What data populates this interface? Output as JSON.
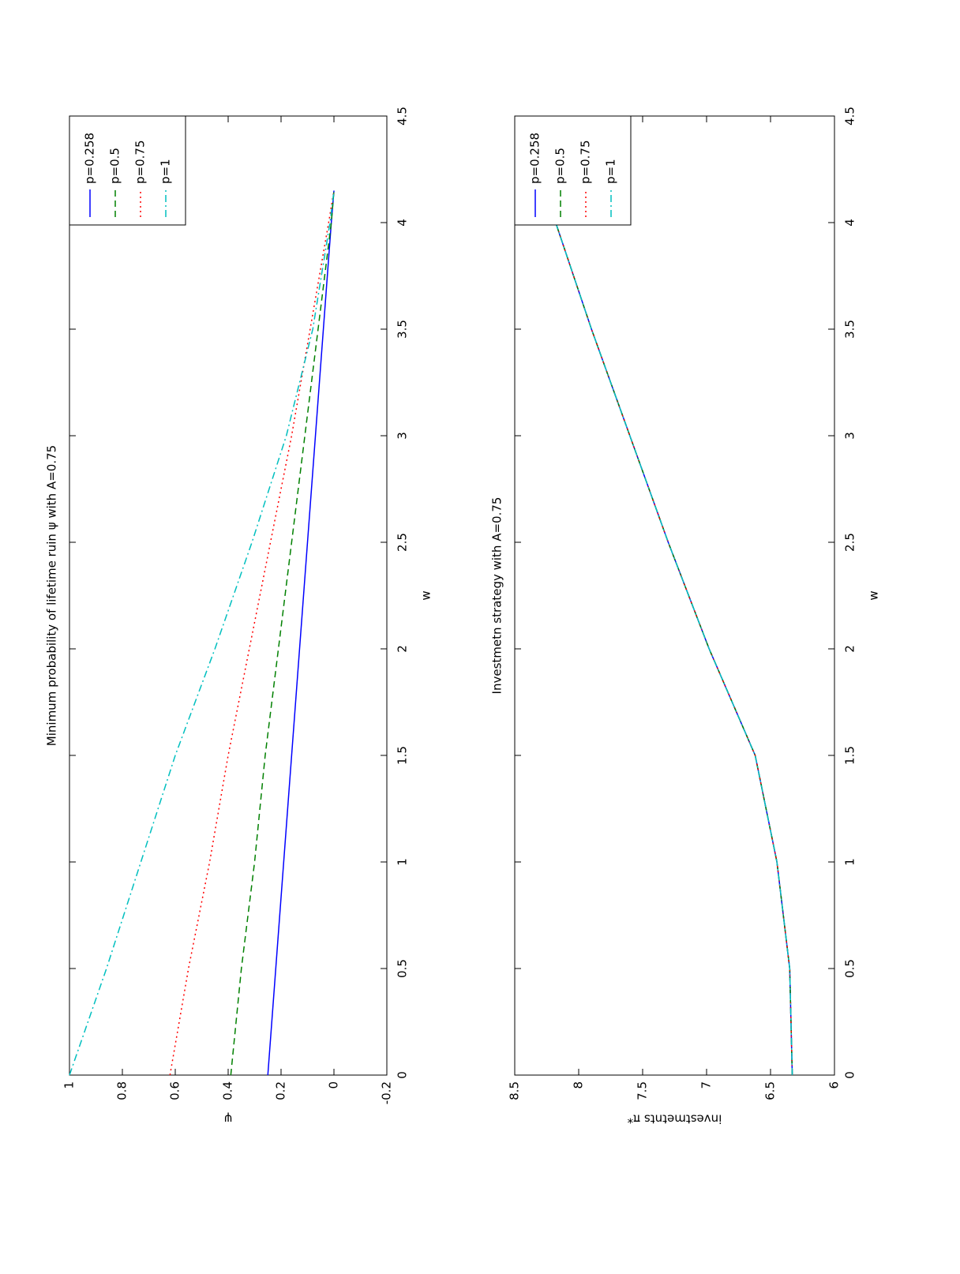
{
  "chart_data": [
    {
      "type": "line",
      "title": "Minimum probability of lifetime ruin ψ with A=0.75",
      "x_label": "w",
      "y_label": "ψ",
      "x": [
        0,
        0.5,
        1,
        1.5,
        2,
        2.5,
        3,
        3.5,
        4,
        4.15
      ],
      "series": [
        {
          "name": "p=0.258",
          "color": "#0000ff",
          "linestyle": "-",
          "values": [
            0.25,
            0.22,
            0.19,
            0.16,
            0.13,
            0.1,
            0.07,
            0.04,
            0.01,
            0
          ]
        },
        {
          "name": "p=0.5",
          "color": "#008000",
          "linestyle": "--",
          "values": [
            0.39,
            0.35,
            0.3,
            0.26,
            0.21,
            0.16,
            0.11,
            0.06,
            0.01,
            0
          ]
        },
        {
          "name": "p=0.75",
          "color": "#ff0000",
          "linestyle": ":",
          "values": [
            0.62,
            0.55,
            0.47,
            0.4,
            0.32,
            0.24,
            0.16,
            0.09,
            0.02,
            0
          ]
        },
        {
          "name": "p=1",
          "color": "#00bfbf",
          "linestyle": "-.",
          "values": [
            1,
            0.86,
            0.73,
            0.6,
            0.45,
            0.31,
            0.18,
            0.08,
            0.015,
            0
          ]
        }
      ],
      "xlim": [
        0,
        4.5
      ],
      "xticks": [
        0,
        0.5,
        1,
        1.5,
        2,
        2.5,
        3,
        3.5,
        4,
        4.5
      ],
      "ylim": [
        -0.2,
        1
      ],
      "yticks": [
        -0.2,
        0,
        0.2,
        0.4,
        0.6,
        0.8,
        1
      ],
      "grid": false,
      "legend": "top-right"
    },
    {
      "type": "line",
      "title": "Investmetn strategy with A=0.75",
      "x_label": "w",
      "y_label": "investmetnts π*",
      "x": [
        0,
        0.5,
        1,
        1.5,
        2,
        2.5,
        3,
        3.5,
        4
      ],
      "series": [
        {
          "name": "p=0.258",
          "color": "#0000ff",
          "linestyle": "-",
          "values": [
            6.33,
            6.35,
            6.45,
            6.62,
            6.98,
            7.3,
            7.6,
            7.9,
            8.18
          ]
        },
        {
          "name": "p=0.5",
          "color": "#008000",
          "linestyle": "--",
          "values": [
            6.33,
            6.35,
            6.45,
            6.62,
            6.98,
            7.3,
            7.6,
            7.9,
            8.18
          ]
        },
        {
          "name": "p=0.75",
          "color": "#ff0000",
          "linestyle": ":",
          "values": [
            6.33,
            6.35,
            6.45,
            6.62,
            6.98,
            7.3,
            7.6,
            7.9,
            8.18
          ]
        },
        {
          "name": "p=1",
          "color": "#00bfbf",
          "linestyle": "-.",
          "values": [
            6.33,
            6.35,
            6.45,
            6.62,
            6.98,
            7.3,
            7.6,
            7.9,
            8.18
          ]
        }
      ],
      "xlim": [
        0,
        4.5
      ],
      "xticks": [
        0,
        0.5,
        1,
        1.5,
        2,
        2.5,
        3,
        3.5,
        4,
        4.5
      ],
      "ylim": [
        6,
        8.5
      ],
      "yticks": [
        6,
        6.5,
        7,
        7.5,
        8,
        8.5
      ],
      "grid": false,
      "legend": "top-right"
    }
  ]
}
